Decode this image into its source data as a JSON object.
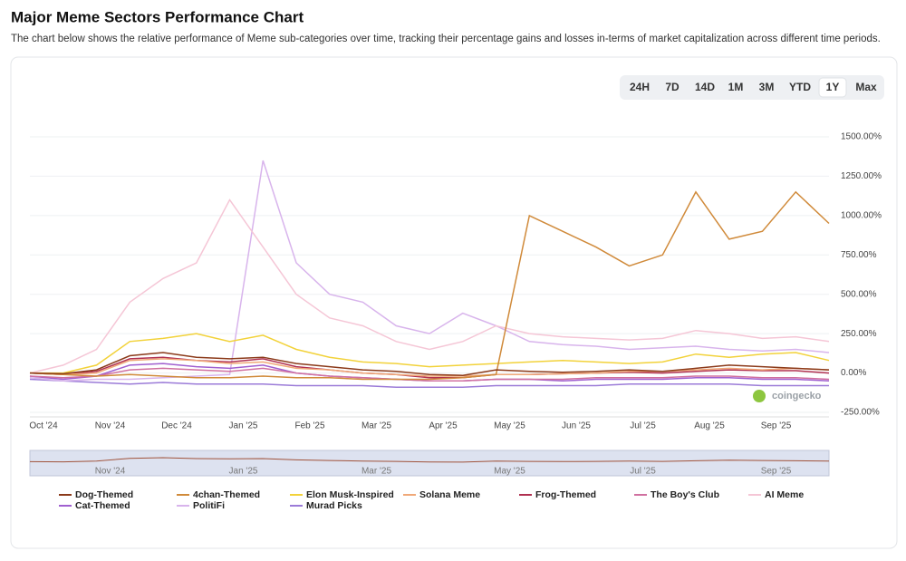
{
  "header": {
    "title": "Major Meme Sectors Performance Chart",
    "description": "The chart below shows the relative performance of Meme sub-categories over time, tracking their percentage gains and losses in-terms of market capitalization across different time periods."
  },
  "ranges": [
    "24H",
    "7D",
    "14D",
    "1M",
    "3M",
    "YTD",
    "1Y",
    "Max"
  ],
  "active_range": "1Y",
  "watermark": "coingecko",
  "chart_data": {
    "type": "line",
    "categories": [
      "Oct '24",
      null,
      "Nov '24",
      null,
      "Dec '24",
      null,
      "Jan '25",
      null,
      "Feb '25",
      null,
      "Mar '25",
      null,
      "Apr '25",
      null,
      "May '25",
      null,
      "Jun '25",
      null,
      "Jul '25",
      null,
      "Aug '25",
      null,
      "Sep '25",
      null,
      null
    ],
    "ylim": [
      -250,
      1500
    ],
    "yticks": [
      {
        "value": 1500,
        "label": "1500.00%"
      },
      {
        "value": 1250,
        "label": "1250.00%"
      },
      {
        "value": 1000,
        "label": "1000.00%"
      },
      {
        "value": 750,
        "label": "750.00%"
      },
      {
        "value": 500,
        "label": "500.00%"
      },
      {
        "value": 250,
        "label": "250.00%"
      },
      {
        "value": 0,
        "label": "0.00%"
      },
      {
        "value": -250,
        "label": "-250.00%"
      }
    ],
    "grid": true,
    "series": [
      {
        "name": "Dog-Themed",
        "color": "#8b3a1a",
        "values": [
          0,
          -5,
          20,
          110,
          130,
          100,
          90,
          100,
          60,
          40,
          20,
          10,
          -10,
          -15,
          20,
          10,
          5,
          10,
          20,
          10,
          30,
          50,
          40,
          30,
          20
        ]
      },
      {
        "name": "4chan-Themed",
        "color": "#d08a3a",
        "values": [
          0,
          -10,
          -20,
          -10,
          -20,
          -30,
          -30,
          -20,
          -30,
          -30,
          -40,
          -40,
          -40,
          -30,
          -10,
          1000,
          900,
          800,
          680,
          750,
          1150,
          850,
          900,
          1150,
          950
        ]
      },
      {
        "name": "Elon Musk-Inspired",
        "color": "#f2d23a",
        "values": [
          0,
          0,
          50,
          200,
          220,
          250,
          200,
          240,
          150,
          100,
          70,
          60,
          40,
          50,
          60,
          70,
          80,
          70,
          60,
          70,
          120,
          100,
          120,
          130,
          80
        ]
      },
      {
        "name": "Solana Meme",
        "color": "#f0a878",
        "values": [
          0,
          -10,
          0,
          80,
          90,
          80,
          60,
          70,
          30,
          20,
          0,
          -10,
          -20,
          -20,
          -10,
          -10,
          -5,
          0,
          10,
          10,
          20,
          30,
          20,
          30,
          20
        ]
      },
      {
        "name": "Frog-Themed",
        "color": "#b03050",
        "values": [
          0,
          -10,
          10,
          90,
          100,
          80,
          70,
          90,
          40,
          20,
          0,
          -10,
          -30,
          -30,
          -10,
          -10,
          -5,
          0,
          5,
          0,
          10,
          20,
          15,
          15,
          0
        ]
      },
      {
        "name": "The Boy's Club",
        "color": "#d070a0",
        "values": [
          -20,
          -30,
          -20,
          20,
          30,
          20,
          10,
          30,
          0,
          -20,
          -30,
          -40,
          -50,
          -50,
          -40,
          -40,
          -40,
          -30,
          -30,
          -30,
          -20,
          -20,
          -30,
          -30,
          -40
        ]
      },
      {
        "name": "AI Meme",
        "color": "#f5c6d6",
        "values": [
          0,
          50,
          150,
          450,
          600,
          700,
          1100,
          800,
          500,
          350,
          300,
          200,
          150,
          200,
          300,
          250,
          230,
          220,
          210,
          220,
          270,
          250,
          220,
          230,
          200
        ]
      },
      {
        "name": "Cat-Themed",
        "color": "#a060d0",
        "values": [
          -20,
          -40,
          -20,
          50,
          60,
          40,
          30,
          50,
          0,
          -20,
          -30,
          -40,
          -50,
          -50,
          -40,
          -40,
          -50,
          -40,
          -40,
          -40,
          -30,
          -30,
          -40,
          -40,
          -50
        ]
      },
      {
        "name": "PolitiFi",
        "color": "#d8b4ec",
        "values": [
          -30,
          -50,
          -40,
          -40,
          -30,
          -20,
          -10,
          1350,
          700,
          500,
          450,
          300,
          250,
          380,
          300,
          200,
          180,
          170,
          150,
          160,
          170,
          150,
          140,
          150,
          130
        ]
      },
      {
        "name": "Murad Picks",
        "color": "#9b7bd8",
        "values": [
          -40,
          -50,
          -60,
          -70,
          -60,
          -70,
          -70,
          -70,
          -80,
          -80,
          -80,
          -90,
          -90,
          -90,
          -80,
          -80,
          -80,
          -80,
          -70,
          -70,
          -70,
          -70,
          -80,
          -80,
          -80
        ]
      }
    ]
  }
}
